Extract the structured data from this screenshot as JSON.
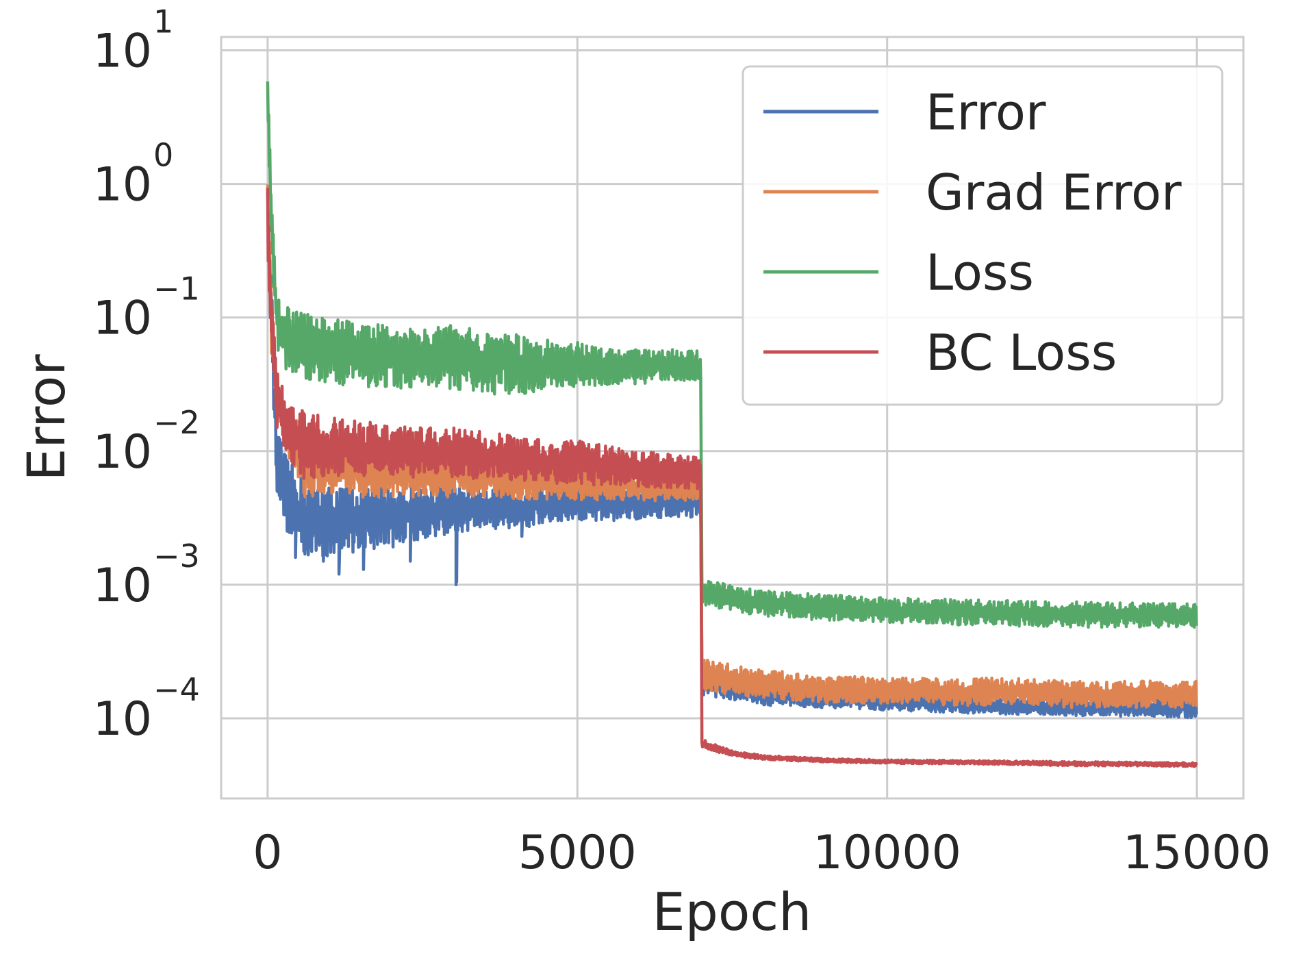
{
  "chart_data": {
    "type": "line",
    "title": "",
    "xlabel": "Epoch",
    "ylabel": "Error",
    "xlim": [
      -750,
      15750
    ],
    "ylim_log10": [
      -4.6,
      1.1
    ],
    "yscale": "log",
    "grid": true,
    "legend_position": "top-right",
    "x_ticks": [
      {
        "value": 0,
        "label": "0"
      },
      {
        "value": 5000,
        "label": "5000"
      },
      {
        "value": 10000,
        "label": "10000"
      },
      {
        "value": 15000,
        "label": "15000"
      }
    ],
    "y_ticks": [
      {
        "exp": 1,
        "base": "10",
        "sup": "1"
      },
      {
        "exp": 0,
        "base": "10",
        "sup": "0"
      },
      {
        "exp": -1,
        "base": "10",
        "sup": "−1"
      },
      {
        "exp": -2,
        "base": "10",
        "sup": "−2"
      },
      {
        "exp": -3,
        "base": "10",
        "sup": "−3"
      },
      {
        "exp": -4,
        "base": "10",
        "sup": "−4"
      }
    ],
    "series": [
      {
        "name": "Error",
        "color": "#4c72b0",
        "band": [
          [
            0,
            0.7,
            1.0
          ],
          [
            60,
            0.05,
            0.2
          ],
          [
            150,
            0.005,
            0.015
          ],
          [
            300,
            0.0025,
            0.009
          ],
          [
            600,
            0.0016,
            0.006
          ],
          [
            1000,
            0.0016,
            0.0055
          ],
          [
            1500,
            0.0018,
            0.0055
          ],
          [
            2000,
            0.0019,
            0.0055
          ],
          [
            2500,
            0.0022,
            0.0055
          ],
          [
            3000,
            0.0024,
            0.0055
          ],
          [
            3500,
            0.0026,
            0.0055
          ],
          [
            4000,
            0.0026,
            0.0055
          ],
          [
            4500,
            0.0028,
            0.0055
          ],
          [
            5000,
            0.0029,
            0.0055
          ],
          [
            5500,
            0.003,
            0.0055
          ],
          [
            6000,
            0.0031,
            0.0055
          ],
          [
            6500,
            0.0032,
            0.0055
          ],
          [
            6990,
            0.0032,
            0.0055
          ],
          [
            7010,
            0.00015,
            0.00025
          ],
          [
            8000,
            0.000125,
            0.00018
          ],
          [
            9000,
            0.00012,
            0.00016
          ],
          [
            10000,
            0.000115,
            0.00015
          ],
          [
            11000,
            0.00011,
            0.00015
          ],
          [
            12000,
            0.000107,
            0.00014
          ],
          [
            13000,
            0.000105,
            0.00014
          ],
          [
            14000,
            0.000103,
            0.00014
          ],
          [
            15000,
            0.0001,
            0.00014
          ]
        ],
        "dips": [
          [
            450,
            0.0016
          ],
          [
            900,
            0.0015
          ],
          [
            1150,
            0.0012
          ],
          [
            1550,
            0.0013
          ],
          [
            2300,
            0.0015
          ],
          [
            3040,
            0.001
          ],
          [
            3050,
            0.00105
          ],
          [
            4100,
            0.0023
          ]
        ]
      },
      {
        "name": "Grad Error",
        "color": "#dd8452",
        "band": [
          [
            0,
            0.7,
            1.0
          ],
          [
            60,
            0.05,
            0.2
          ],
          [
            150,
            0.02,
            0.03
          ],
          [
            300,
            0.01,
            0.022
          ],
          [
            600,
            0.0045,
            0.015
          ],
          [
            1000,
            0.0045,
            0.012
          ],
          [
            1500,
            0.0045,
            0.011
          ],
          [
            2000,
            0.0045,
            0.01
          ],
          [
            2500,
            0.0045,
            0.01
          ],
          [
            3000,
            0.0045,
            0.012
          ],
          [
            3500,
            0.0045,
            0.009
          ],
          [
            4000,
            0.0043,
            0.009
          ],
          [
            4500,
            0.0043,
            0.008
          ],
          [
            5000,
            0.0043,
            0.008
          ],
          [
            5500,
            0.0043,
            0.0075
          ],
          [
            6000,
            0.0043,
            0.007
          ],
          [
            6500,
            0.0042,
            0.007
          ],
          [
            6990,
            0.0042,
            0.007
          ],
          [
            7010,
            0.00016,
            0.00028
          ],
          [
            8000,
            0.00014,
            0.00023
          ],
          [
            9000,
            0.00013,
            0.00021
          ],
          [
            10000,
            0.00013,
            0.0002
          ],
          [
            11000,
            0.000125,
            0.0002
          ],
          [
            12000,
            0.000125,
            0.0002
          ],
          [
            13000,
            0.00012,
            0.00019
          ],
          [
            14000,
            0.00012,
            0.00019
          ],
          [
            15000,
            0.00012,
            0.00019
          ]
        ],
        "dips": []
      },
      {
        "name": "Loss",
        "color": "#55a868",
        "band": [
          [
            0,
            4.0,
            6.0
          ],
          [
            60,
            0.3,
            0.9
          ],
          [
            150,
            0.06,
            0.15
          ],
          [
            300,
            0.04,
            0.12
          ],
          [
            600,
            0.035,
            0.11
          ],
          [
            1000,
            0.032,
            0.1
          ],
          [
            1500,
            0.03,
            0.095
          ],
          [
            2000,
            0.03,
            0.085
          ],
          [
            2500,
            0.029,
            0.08
          ],
          [
            3000,
            0.029,
            0.09
          ],
          [
            3500,
            0.027,
            0.078
          ],
          [
            4000,
            0.026,
            0.075
          ],
          [
            4500,
            0.029,
            0.068
          ],
          [
            5000,
            0.03,
            0.065
          ],
          [
            5500,
            0.031,
            0.062
          ],
          [
            6000,
            0.032,
            0.058
          ],
          [
            6500,
            0.033,
            0.058
          ],
          [
            6990,
            0.034,
            0.056
          ],
          [
            7010,
            0.0007,
            0.0011
          ],
          [
            8000,
            0.00058,
            0.0009
          ],
          [
            9000,
            0.00054,
            0.00085
          ],
          [
            10000,
            0.00052,
            0.0008
          ],
          [
            11000,
            0.0005,
            0.00078
          ],
          [
            12000,
            0.00049,
            0.00076
          ],
          [
            13000,
            0.00048,
            0.00075
          ],
          [
            14000,
            0.00048,
            0.00073
          ],
          [
            15000,
            0.00048,
            0.00072
          ]
        ],
        "dips": []
      },
      {
        "name": "BC Loss",
        "color": "#c44e52",
        "band": [
          [
            0,
            0.3,
            1.0
          ],
          [
            60,
            0.06,
            0.2
          ],
          [
            150,
            0.015,
            0.04
          ],
          [
            300,
            0.009,
            0.025
          ],
          [
            600,
            0.006,
            0.02
          ],
          [
            1000,
            0.0065,
            0.018
          ],
          [
            1500,
            0.0065,
            0.017
          ],
          [
            2000,
            0.0065,
            0.016
          ],
          [
            2500,
            0.0063,
            0.015
          ],
          [
            3000,
            0.0062,
            0.015
          ],
          [
            3500,
            0.0061,
            0.014
          ],
          [
            4000,
            0.006,
            0.013
          ],
          [
            4500,
            0.0058,
            0.012
          ],
          [
            5000,
            0.0056,
            0.012
          ],
          [
            5500,
            0.0055,
            0.011
          ],
          [
            6000,
            0.0054,
            0.01
          ],
          [
            6500,
            0.0053,
            0.0095
          ],
          [
            6990,
            0.0052,
            0.009
          ],
          [
            7010,
            6e-05,
            7e-05
          ],
          [
            7500,
            5.2e-05,
            5.7e-05
          ],
          [
            8000,
            4.9e-05,
            5.3e-05
          ],
          [
            9000,
            4.7e-05,
            5e-05
          ],
          [
            10000,
            4.6e-05,
            4.9e-05
          ],
          [
            11000,
            4.55e-05,
            4.85e-05
          ],
          [
            12000,
            4.5e-05,
            4.8e-05
          ],
          [
            13000,
            4.4e-05,
            4.75e-05
          ],
          [
            14000,
            4.4e-05,
            4.7e-05
          ],
          [
            15000,
            4.35e-05,
            4.65e-05
          ]
        ],
        "dips": []
      }
    ]
  }
}
